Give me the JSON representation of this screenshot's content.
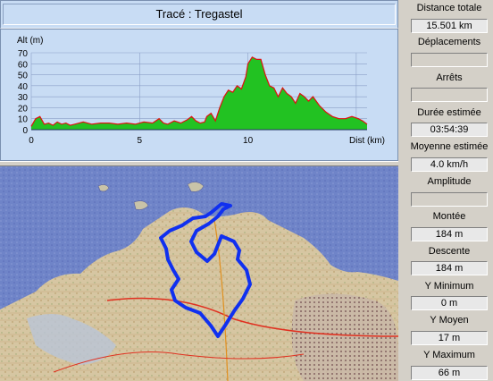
{
  "title": "Tracé : Tregastel",
  "chart_data": {
    "type": "area",
    "ylabel": "Alt (m)",
    "xlabel": "Dist (km)",
    "x_ticks": [
      0,
      5,
      10
    ],
    "y_ticks": [
      0,
      10,
      20,
      30,
      40,
      50,
      60,
      70
    ],
    "xlim": [
      0,
      15.5
    ],
    "ylim": [
      0,
      70
    ],
    "x": [
      0,
      0.2,
      0.4,
      0.6,
      0.8,
      1.0,
      1.2,
      1.4,
      1.6,
      1.8,
      2.0,
      2.4,
      2.8,
      3.2,
      3.6,
      4.0,
      4.4,
      4.8,
      5.2,
      5.6,
      5.9,
      6.1,
      6.3,
      6.6,
      6.9,
      7.2,
      7.4,
      7.6,
      7.8,
      8.0,
      8.1,
      8.3,
      8.5,
      8.7,
      8.9,
      9.1,
      9.3,
      9.5,
      9.7,
      9.9,
      10.0,
      10.2,
      10.4,
      10.6,
      10.8,
      11.0,
      11.2,
      11.4,
      11.6,
      11.8,
      12.0,
      12.2,
      12.4,
      12.6,
      12.8,
      13.0,
      13.3,
      13.6,
      13.9,
      14.2,
      14.5,
      14.8,
      15.1,
      15.3,
      15.5
    ],
    "values": [
      3,
      10,
      12,
      5,
      6,
      4,
      7,
      5,
      6,
      4,
      5,
      7,
      5,
      6,
      6,
      5,
      6,
      5,
      7,
      6,
      10,
      6,
      5,
      8,
      6,
      9,
      12,
      8,
      6,
      7,
      12,
      15,
      8,
      20,
      30,
      36,
      34,
      40,
      37,
      48,
      60,
      66,
      64,
      64,
      50,
      40,
      38,
      30,
      38,
      33,
      30,
      24,
      33,
      30,
      26,
      30,
      22,
      16,
      12,
      10,
      10,
      12,
      10,
      8,
      5
    ],
    "fill_color": "#22c222",
    "line_color": "#e01010"
  },
  "stats": {
    "distance_label": "Distance totale",
    "distance_value": "15.501 km",
    "deplacements_label": "Déplacements",
    "deplacements_value": "",
    "arrets_label": "Arrêts",
    "arrets_value": "",
    "duree_label": "Durée estimée",
    "duree_value": "03:54:39",
    "moyenne_label": "Moyenne estimée",
    "moyenne_value": "4.0 km/h",
    "amplitude_label": "Amplitude",
    "amplitude_value": "",
    "montee_label": "Montée",
    "montee_value": "184 m",
    "descente_label": "Descente",
    "descente_value": "184 m",
    "ymin_label": "Y Minimum",
    "ymin_value": "0 m",
    "ymoy_label": "Y Moyen",
    "ymoy_value": "17 m",
    "ymax_label": "Y Maximum",
    "ymax_value": "66 m"
  },
  "colors": {
    "panel_bg": "#c8dcf4",
    "route": "#1030f0",
    "sea": "#6f84c8",
    "land": "#d8c8a0"
  }
}
